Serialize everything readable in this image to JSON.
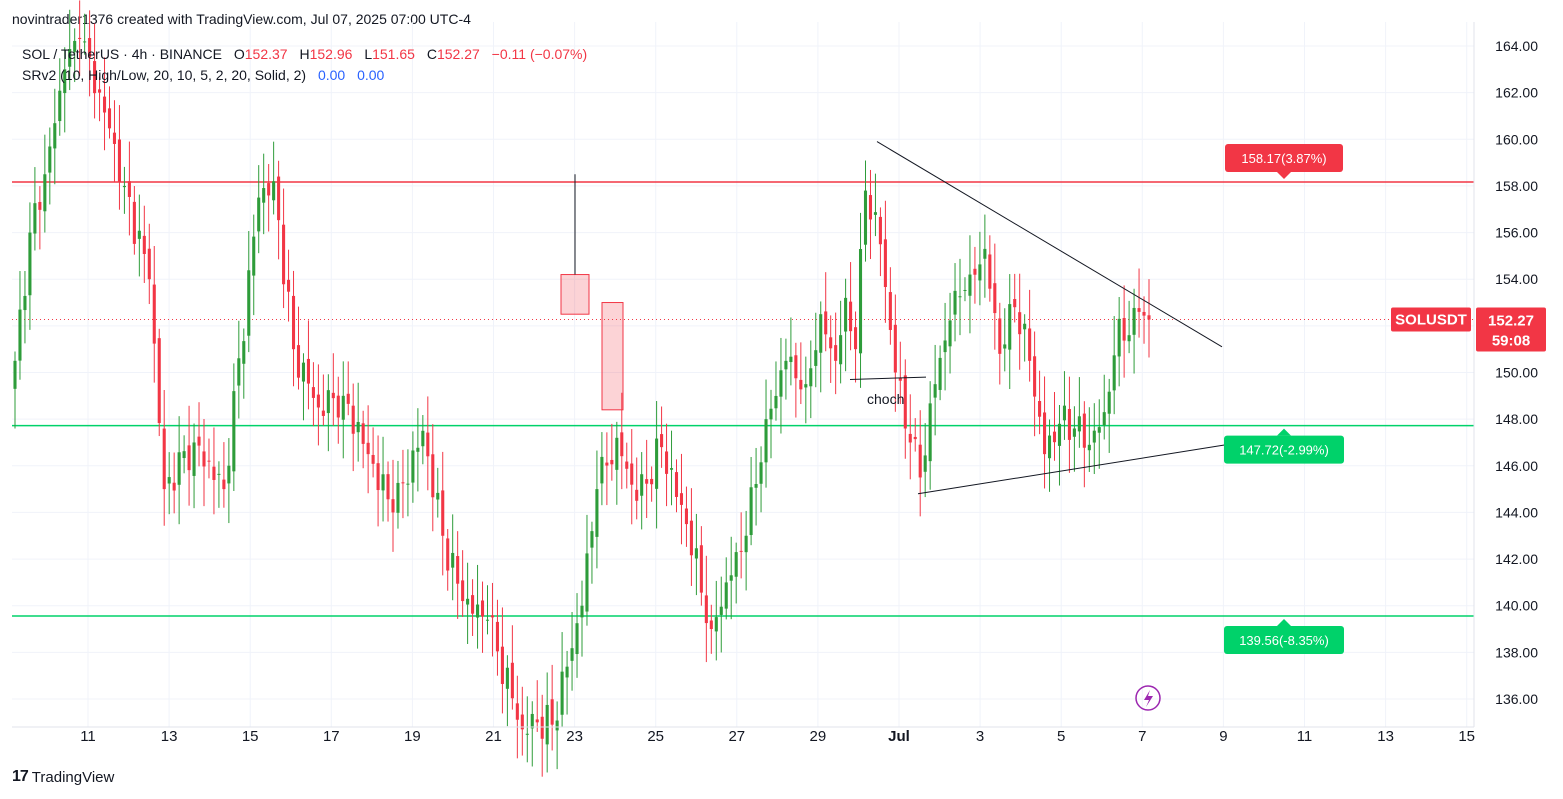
{
  "credit": "novintrader1376 created with TradingView.com, Jul 07, 2025 07:00 UTC-4",
  "legend": {
    "symbol": "SOL / TetherUS · 4h · BINANCE",
    "o_label": "O",
    "o_value": "152.37",
    "h_label": "H",
    "h_value": "152.96",
    "l_label": "L",
    "l_value": "151.65",
    "c_label": "C",
    "c_value": "152.27",
    "change": "−0.11 (−0.07%)",
    "indicator": "SRv2 (10, High/Low, 20, 10, 5, 2, 20, Solid, 2)",
    "ind_value1": "0.00",
    "ind_value2": "0.00"
  },
  "footer": {
    "brand_mark": "17",
    "brand_name": "TradingView"
  },
  "chart_data": {
    "type": "candlestick",
    "symbol": "SOLUSDT",
    "timeframe": "4h",
    "x_tick_labels": [
      "11",
      "13",
      "15",
      "17",
      "19",
      "21",
      "23",
      "25",
      "27",
      "29",
      "Jul",
      "3",
      "5",
      "7",
      "9",
      "11",
      "13",
      "15"
    ],
    "y_tick_labels": [
      "164.00",
      "162.00",
      "160.00",
      "158.00",
      "156.00",
      "154.00",
      "152.00",
      "150.00",
      "148.00",
      "146.00",
      "144.00",
      "142.00",
      "140.00",
      "138.00",
      "136.00"
    ],
    "ylim": [
      134.8,
      164.6
    ],
    "current_price": {
      "value": 152.27,
      "label": "SOLUSDT",
      "value_text": "152.27",
      "countdown": "59:08"
    },
    "horizontal_levels": [
      {
        "value": 158.17,
        "color": "#f23645",
        "label": "158.17(3.87%)"
      },
      {
        "value": 147.72,
        "color": "#00d26a",
        "label": "147.72(-2.99%)"
      },
      {
        "value": 139.56,
        "color": "#00d26a",
        "label": "139.56(-8.35%)"
      }
    ],
    "trendlines": [
      {
        "from": [
          "Jun 30",
          159.9
        ],
        "to": [
          "Jul 9",
          151.1
        ]
      },
      {
        "from": [
          "Jul 1",
          144.8
        ],
        "to": [
          "Jul 9",
          146.9
        ]
      }
    ],
    "annotations": [
      {
        "text": "choch",
        "at": [
          "Jul 1",
          149.6
        ]
      }
    ],
    "drawn_boxes": [
      {
        "from_price": 152.5,
        "to_price": 154.2,
        "color": "#f23645"
      },
      {
        "from_price": 148.4,
        "to_price": 153.0,
        "color": "#f23645"
      }
    ],
    "colors": {
      "up": "#22ab94",
      "up_alt": "#2e9c3a",
      "down": "#f23645",
      "grid": "#f0f3fa"
    }
  }
}
